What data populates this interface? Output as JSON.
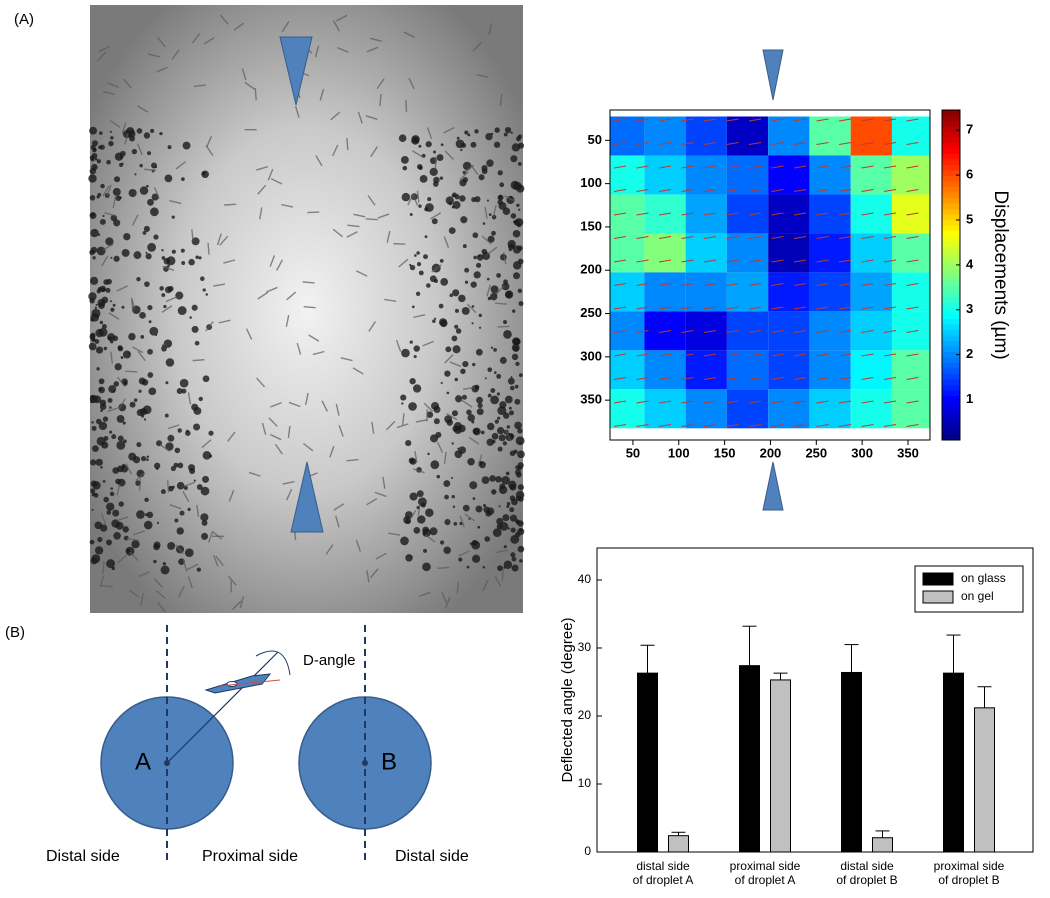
{
  "labels": {
    "panel_a": "(A)",
    "panel_b": "(B)"
  },
  "diagram": {
    "circle_a": "A",
    "circle_b": "B",
    "angle_label": "D-angle",
    "sides": [
      "Distal side",
      "Proximal side",
      "Distal side"
    ]
  },
  "chart_data": [
    {
      "type": "heatmap",
      "colormap": "jet",
      "colorbar_label": "Displacements (µm)",
      "x": [
        40,
        85,
        130,
        175,
        220,
        265,
        310,
        355
      ],
      "y": [
        45,
        90,
        135,
        180,
        225,
        270,
        315,
        360
      ],
      "z": [
        [
          1.8,
          2.0,
          1.5,
          0.6,
          2.0,
          3.5,
          6.0,
          3.0
        ],
        [
          3.0,
          2.5,
          2.0,
          1.8,
          1.0,
          2.0,
          3.5,
          4.0
        ],
        [
          3.5,
          3.2,
          2.2,
          1.5,
          0.6,
          1.5,
          3.0,
          4.5
        ],
        [
          3.5,
          3.8,
          2.5,
          2.0,
          0.5,
          1.2,
          2.5,
          3.5
        ],
        [
          2.5,
          2.0,
          2.0,
          2.2,
          1.2,
          1.5,
          2.2,
          3.0
        ],
        [
          2.0,
          1.0,
          0.8,
          1.5,
          1.5,
          2.0,
          2.5,
          3.0
        ],
        [
          2.5,
          2.0,
          1.2,
          1.8,
          1.5,
          2.0,
          2.8,
          3.5
        ],
        [
          3.0,
          2.5,
          2.0,
          1.5,
          2.0,
          2.5,
          3.0,
          3.5
        ]
      ],
      "xlim": [
        25,
        374
      ],
      "ylim": [
        396,
        15
      ],
      "xticks": [
        50,
        100,
        150,
        200,
        250,
        300,
        350
      ],
      "yticks": [
        50,
        100,
        150,
        200,
        250,
        300,
        350
      ],
      "clim": [
        0.1,
        7.45
      ],
      "cticks": [
        1,
        2,
        3,
        4,
        5,
        6,
        7
      ]
    },
    {
      "type": "bar",
      "ylabel": "Deflected angle (degree)",
      "categories": [
        [
          "distal side",
          "of droplet A"
        ],
        [
          "proximal side",
          "of droplet A"
        ],
        [
          "distal side",
          "of droplet B"
        ],
        [
          "proximal side",
          "of droplet B"
        ]
      ],
      "series": [
        {
          "name": "on glass",
          "color": "#000000",
          "values": [
            26.3,
            27.4,
            26.4,
            26.3
          ],
          "errors": [
            4.1,
            5.8,
            4.1,
            5.6
          ]
        },
        {
          "name": "on gel",
          "color": "#c0c0c0",
          "values": [
            2.4,
            25.3,
            2.1,
            21.2
          ],
          "errors": [
            0.5,
            1.0,
            1.0,
            3.1
          ]
        }
      ],
      "ylim": [
        0,
        44.7
      ],
      "yticks": [
        0,
        10,
        20,
        30,
        40
      ],
      "legend": "upper right"
    }
  ]
}
